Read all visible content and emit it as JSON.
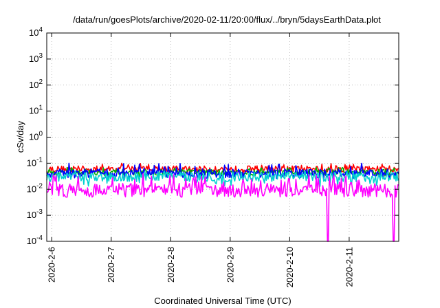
{
  "chart_data": {
    "type": "line",
    "title": "/data/run/goesPlots/archive/2020-02-11/20:00/flux/../bryn/5daysEarthData.plot",
    "xlabel": "Coordinated Universal Time (UTC)",
    "ylabel": "cSv/day",
    "yscale": "log",
    "ylim": [
      0.0001,
      10000
    ],
    "xlim": [
      "2020-02-05T22:00",
      "2020-02-11T20:00"
    ],
    "x_ticks": [
      "2020-2-6",
      "2020-2-7",
      "2020-2-8",
      "2020-2-9",
      "2020-2-10",
      "2020-2-11"
    ],
    "y_ticks": [
      {
        "base": "10",
        "exp": "-4",
        "value": 0.0001
      },
      {
        "base": "10",
        "exp": "-3",
        "value": 0.001
      },
      {
        "base": "10",
        "exp": "-2",
        "value": 0.01
      },
      {
        "base": "10",
        "exp": "-1",
        "value": 0.1
      },
      {
        "base": "10",
        "exp": "0",
        "value": 1
      },
      {
        "base": "10",
        "exp": "1",
        "value": 10
      },
      {
        "base": "10",
        "exp": "2",
        "value": 100
      },
      {
        "base": "10",
        "exp": "3",
        "value": 1000
      },
      {
        "base": "10",
        "exp": "4",
        "value": 10000
      }
    ],
    "grid": true,
    "series": [
      {
        "color": "#ff0000",
        "typical": 0.06,
        "range": [
          0.04,
          0.1
        ]
      },
      {
        "color": "#00b000",
        "typical": 0.045,
        "range": [
          0.03,
          0.07
        ]
      },
      {
        "color": "#0000ff",
        "typical": 0.04,
        "range": [
          0.025,
          0.1
        ]
      },
      {
        "color": "#00d0d0",
        "typical": 0.03,
        "range": [
          0.012,
          0.05
        ]
      },
      {
        "color": "#ff00ff",
        "typical": 0.009,
        "range": [
          0.005,
          0.04
        ]
      }
    ],
    "events": [
      {
        "series": 4,
        "x": "2020-02-10T15:30",
        "y": 0.0001
      },
      {
        "series": 4,
        "x": "2020-02-11T18:00",
        "y": 0.0001
      }
    ]
  }
}
